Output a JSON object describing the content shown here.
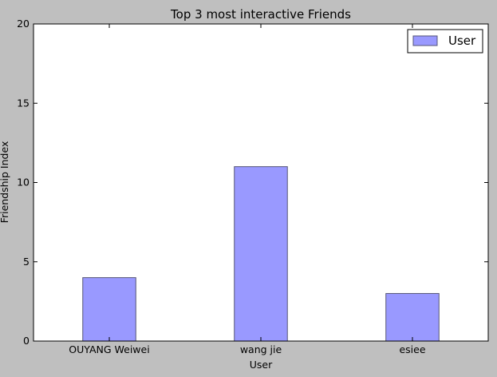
{
  "chart_data": {
    "type": "bar",
    "title": "Top 3 most interactive Friends",
    "xlabel": "User",
    "ylabel": "Friendship Index",
    "categories": [
      "OUYANG Weiwei",
      "wang jie",
      "esiee"
    ],
    "series": [
      {
        "name": "User",
        "values": [
          4,
          11,
          3
        ]
      }
    ],
    "ylim": [
      0,
      20
    ],
    "yticks": [
      "0",
      "5",
      "10",
      "15",
      "20"
    ],
    "grid": false,
    "legend_position": "top-right",
    "colors": {
      "bar_fill": "#9999ff",
      "bar_edge": "#555577",
      "figure_background": "#bfbfbf",
      "plot_background": "#ffffff",
      "axis": "#000000"
    }
  }
}
